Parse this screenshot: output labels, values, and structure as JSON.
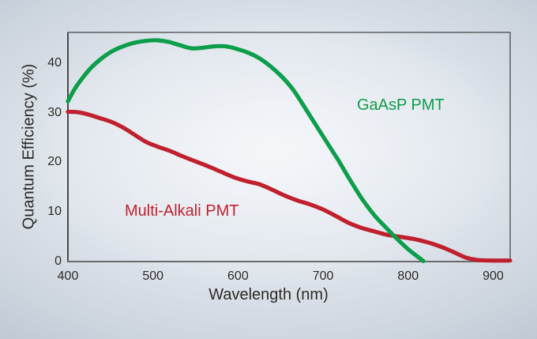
{
  "chart_data": {
    "type": "line",
    "title": "",
    "xlabel": "Wavelength (nm)",
    "ylabel": "Quantum Efficiency (%)",
    "xlim": [
      400,
      920
    ],
    "ylim": [
      0,
      46.2
    ],
    "x_ticks": [
      400,
      500,
      600,
      700,
      800,
      900
    ],
    "y_ticks": [
      0,
      10,
      20,
      30,
      40
    ],
    "grid": false,
    "legend_position": "inline-labels",
    "axis_color": "#4a4a4a",
    "text_color": "#2e2a26",
    "series": [
      {
        "name": "GaAsP PMT",
        "color": "#0c9e4b",
        "label_color": "#0d9b4b",
        "points": [
          [
            400,
            32.3
          ],
          [
            408,
            34.8
          ],
          [
            418,
            37.2
          ],
          [
            428,
            39.2
          ],
          [
            440,
            41.0
          ],
          [
            452,
            42.4
          ],
          [
            465,
            43.4
          ],
          [
            478,
            44.1
          ],
          [
            492,
            44.5
          ],
          [
            505,
            44.6
          ],
          [
            518,
            44.3
          ],
          [
            532,
            43.6
          ],
          [
            545,
            43.0
          ],
          [
            558,
            43.1
          ],
          [
            572,
            43.4
          ],
          [
            585,
            43.4
          ],
          [
            598,
            42.9
          ],
          [
            612,
            42.1
          ],
          [
            625,
            41.0
          ],
          [
            638,
            39.4
          ],
          [
            652,
            37.2
          ],
          [
            665,
            34.6
          ],
          [
            678,
            31.2
          ],
          [
            692,
            27.4
          ],
          [
            705,
            23.9
          ],
          [
            718,
            20.4
          ],
          [
            732,
            16.4
          ],
          [
            746,
            12.6
          ],
          [
            760,
            9.4
          ],
          [
            772,
            7.2
          ],
          [
            785,
            4.9
          ],
          [
            798,
            2.8
          ],
          [
            808,
            1.4
          ],
          [
            818,
            0.1
          ]
        ]
      },
      {
        "name": "Multi-Alkali PMT",
        "color": "#c0202d",
        "label_color": "#c1202e",
        "points": [
          [
            400,
            30.2
          ],
          [
            412,
            30.1
          ],
          [
            425,
            29.6
          ],
          [
            438,
            28.9
          ],
          [
            452,
            28.1
          ],
          [
            465,
            27.0
          ],
          [
            478,
            25.6
          ],
          [
            492,
            24.1
          ],
          [
            505,
            23.2
          ],
          [
            520,
            22.3
          ],
          [
            535,
            21.2
          ],
          [
            550,
            20.2
          ],
          [
            565,
            19.2
          ],
          [
            580,
            18.1
          ],
          [
            595,
            17.0
          ],
          [
            610,
            16.2
          ],
          [
            625,
            15.6
          ],
          [
            640,
            14.5
          ],
          [
            655,
            13.3
          ],
          [
            670,
            12.3
          ],
          [
            685,
            11.5
          ],
          [
            700,
            10.5
          ],
          [
            715,
            9.2
          ],
          [
            730,
            7.8
          ],
          [
            745,
            6.8
          ],
          [
            760,
            6.1
          ],
          [
            775,
            5.4
          ],
          [
            790,
            5.0
          ],
          [
            805,
            4.6
          ],
          [
            818,
            4.1
          ],
          [
            830,
            3.5
          ],
          [
            843,
            2.7
          ],
          [
            856,
            1.7
          ],
          [
            868,
            0.8
          ],
          [
            880,
            0.35
          ],
          [
            895,
            0.2
          ],
          [
            920,
            0.2
          ]
        ]
      }
    ]
  }
}
